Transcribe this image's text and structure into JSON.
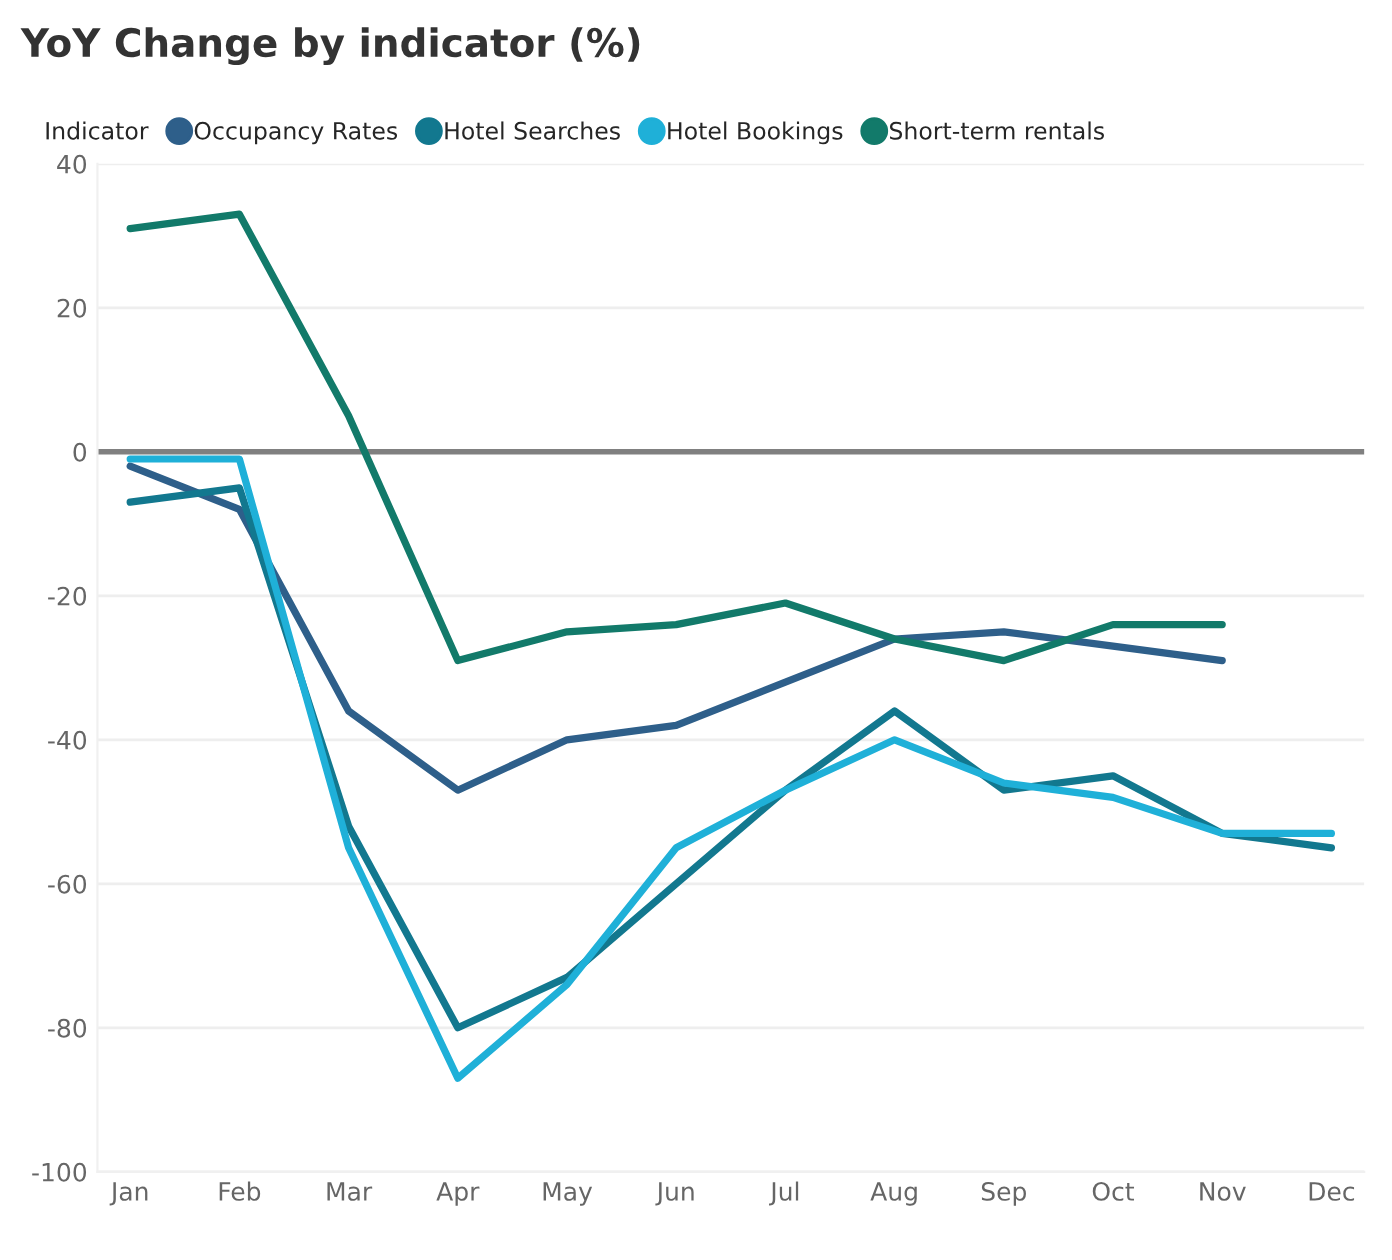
{
  "chart_data": {
    "type": "line",
    "title": "YoY Change by indicator (%)",
    "legend_title": "Indicator",
    "categories": [
      "Jan",
      "Feb",
      "Mar",
      "Apr",
      "May",
      "Jun",
      "Jul",
      "Aug",
      "Sep",
      "Oct",
      "Nov",
      "Dec"
    ],
    "series": [
      {
        "name": "Occupancy Rates",
        "color": "#2e5f8a",
        "values": [
          -2,
          -8,
          -36,
          -47,
          -40,
          -38,
          -32,
          -26,
          -25,
          -27,
          -29,
          null
        ]
      },
      {
        "name": "Hotel Searches",
        "color": "#12788f",
        "values": [
          -7,
          -5,
          -52,
          -80,
          -73,
          -60,
          -47,
          -36,
          -47,
          -45,
          -53,
          -55
        ]
      },
      {
        "name": "Hotel Bookings",
        "color": "#1fb0d8",
        "values": [
          -1,
          -1,
          -55,
          -87,
          -74,
          -55,
          -47,
          -40,
          -46,
          -48,
          -53,
          -53
        ]
      },
      {
        "name": "Short-term rentals",
        "color": "#127a6a",
        "values": [
          31,
          33,
          5,
          -29,
          -25,
          -24,
          -21,
          -26,
          -29,
          -24,
          -24,
          null
        ]
      }
    ],
    "ylim": [
      -100,
      40
    ],
    "yticks": [
      -100,
      -80,
      -60,
      -40,
      -20,
      0,
      20,
      40
    ],
    "ref_lines": [
      {
        "axis": "y",
        "value": 0,
        "color": "#808080"
      }
    ],
    "grid": "y",
    "legend": "top left",
    "line_style": "solid",
    "marker": "none"
  }
}
